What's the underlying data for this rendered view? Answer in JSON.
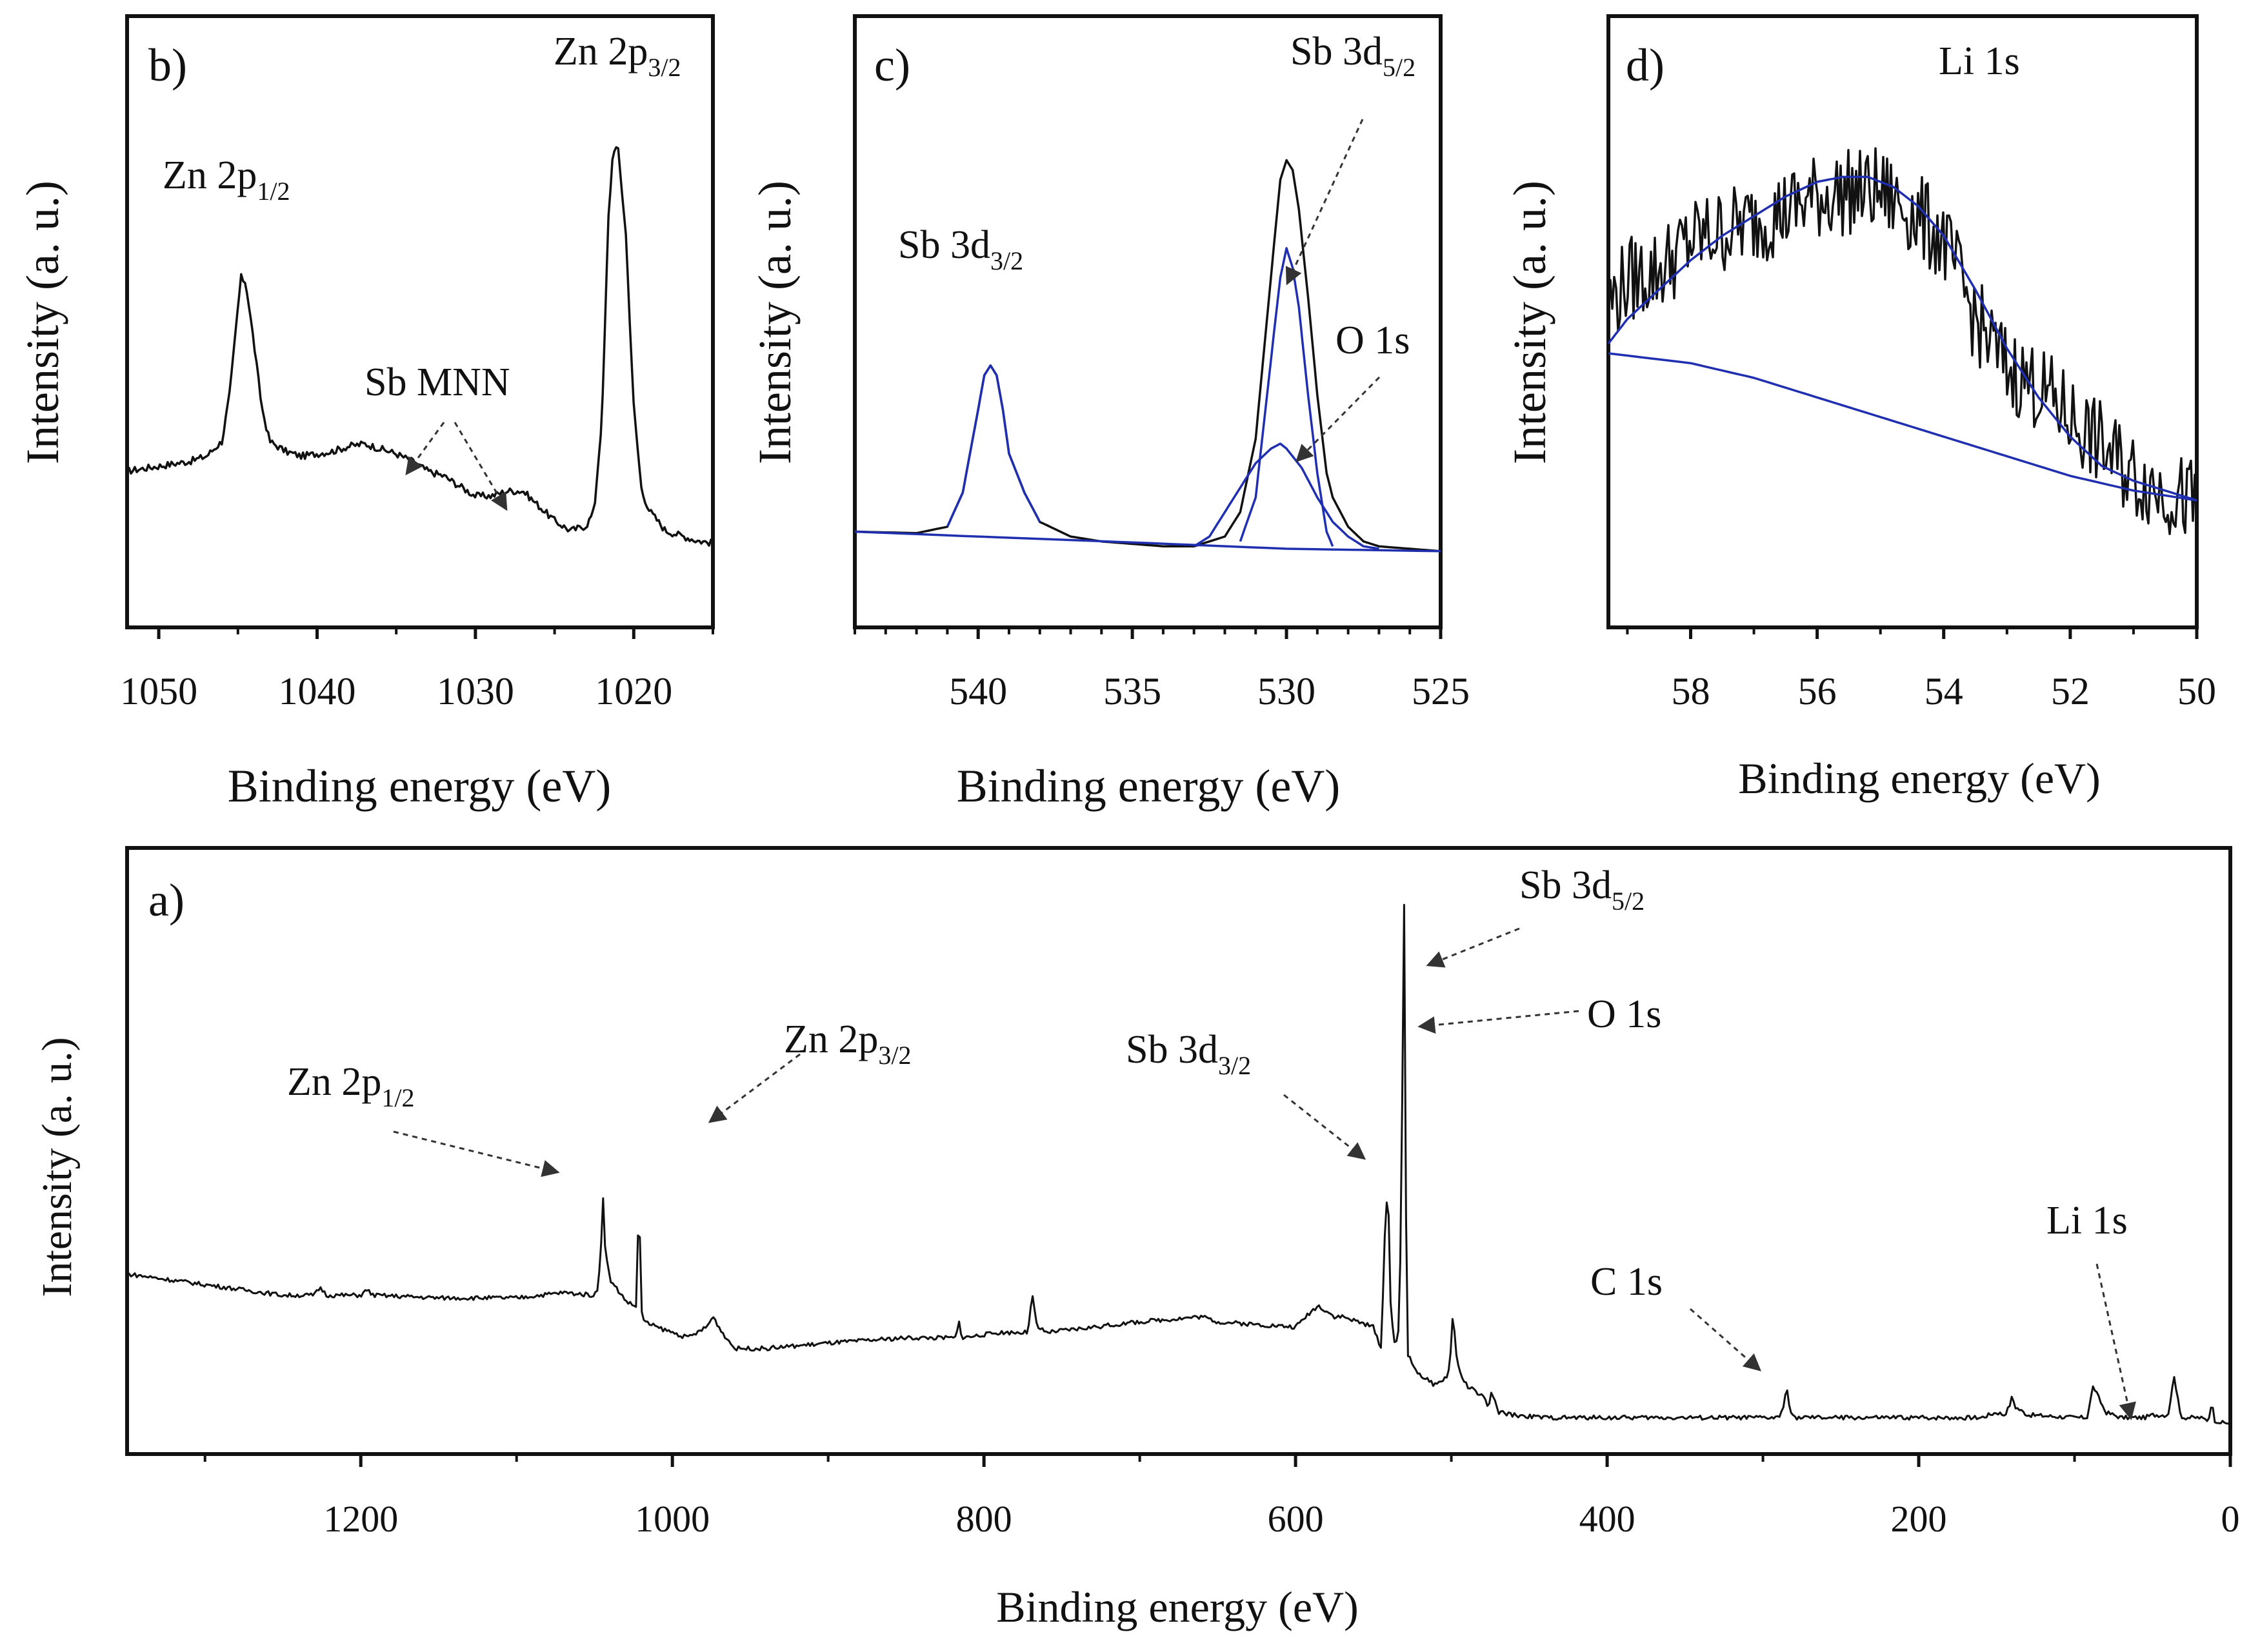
{
  "figure": {
    "colors": {
      "ink": "#111111",
      "fit": "#1f2fb0",
      "arrow": "#333333"
    }
  },
  "chart_data": [
    {
      "id": "b",
      "type": "line",
      "panel_label": "b)",
      "xlabel": "Binding energy (eV)",
      "ylabel": "Intensity (a. u.)",
      "xlim": [
        1052,
        1015
      ],
      "ylim": [
        0,
        100
      ],
      "x_ticks": [
        1050,
        1040,
        1030,
        1020
      ],
      "x_tick_labels": [
        "1050",
        "1040",
        "1030",
        "1020"
      ],
      "series": [
        {
          "name": "measured",
          "color": "#111111",
          "noise": 0.7,
          "x": [
            1052,
            1050,
            1048,
            1047,
            1046,
            1045.5,
            1045,
            1044.8,
            1044.5,
            1044,
            1043.5,
            1043,
            1042,
            1041,
            1040,
            1039,
            1038,
            1037,
            1036,
            1035,
            1034,
            1033,
            1032,
            1031,
            1030,
            1029,
            1028,
            1027,
            1026,
            1025,
            1024,
            1023,
            1022.5,
            1022,
            1021.6,
            1021.3,
            1021,
            1020.5,
            1020,
            1019.5,
            1019,
            1018,
            1017,
            1016,
            1015
          ],
          "values": [
            22,
            23,
            24,
            25,
            28,
            38,
            55,
            61,
            60,
            48,
            35,
            28,
            26,
            25,
            25.5,
            26,
            27,
            27.5,
            26.5,
            25.5,
            24,
            22,
            21,
            19,
            17,
            17,
            18,
            18,
            15,
            12,
            10,
            11,
            14,
            33,
            73,
            87,
            87,
            70,
            35,
            18,
            14,
            10,
            9,
            8,
            7.5
          ]
        }
      ],
      "annotations": [
        {
          "text": "Zn 2p",
          "sub": "1/2"
        },
        {
          "text": "Zn 2p",
          "sub": "3/2"
        },
        {
          "text": "Sb MNN",
          "sub": ""
        }
      ]
    },
    {
      "id": "c",
      "type": "line",
      "panel_label": "c)",
      "xlabel": "Binding energy (eV)",
      "ylabel": "Intensity (a. u.)",
      "xlim": [
        544,
        525
      ],
      "ylim": [
        0,
        100
      ],
      "x_ticks": [
        540,
        535,
        530,
        525
      ],
      "x_tick_labels": [
        "540",
        "535",
        "530",
        "525"
      ],
      "series": [
        {
          "name": "envelope",
          "color": "#111111",
          "x": [
            544,
            542,
            541,
            540.5,
            540,
            539.8,
            539.6,
            539.4,
            539.2,
            539,
            538.5,
            538,
            537,
            536,
            535,
            534,
            533,
            532,
            531.5,
            531,
            530.7,
            530.4,
            530.2,
            530,
            529.8,
            529.6,
            529.3,
            529,
            528.7,
            528.5,
            528,
            527.5,
            527,
            526,
            525
          ],
          "values": [
            6,
            5.7,
            7,
            14,
            31,
            38,
            40,
            38,
            31,
            22,
            14,
            8,
            5,
            4,
            3.5,
            3,
            3,
            5,
            10,
            25,
            45,
            65,
            78,
            82,
            80,
            72,
            54,
            34,
            18,
            13,
            7,
            4,
            3,
            2.5,
            2
          ]
        },
        {
          "name": "Sb 3d5/2 component",
          "color": "#1f2fb0",
          "x": [
            531.5,
            531,
            530.7,
            530.4,
            530.2,
            530,
            529.8,
            529.6,
            529.3,
            529,
            528.7,
            528.5
          ],
          "values": [
            4,
            13,
            30,
            47,
            58,
            64,
            60,
            52,
            34,
            18,
            6,
            3
          ]
        },
        {
          "name": "O 1s component",
          "color": "#1f2fb0",
          "x": [
            533,
            532.5,
            532,
            531.5,
            531,
            530.5,
            530.2,
            530,
            529.5,
            529,
            528.5,
            528,
            527.5,
            527
          ],
          "values": [
            3,
            5,
            10,
            15,
            20,
            23,
            24,
            23,
            19,
            13,
            8,
            5,
            3,
            2.5
          ]
        },
        {
          "name": "Sb 3d3/2 fit",
          "color": "#1f2fb0",
          "x": [
            541,
            540.5,
            540,
            539.8,
            539.6,
            539.4,
            539.2,
            539,
            538.5,
            538
          ],
          "values": [
            7,
            14,
            31,
            38,
            40,
            38,
            31,
            22,
            14,
            8
          ]
        },
        {
          "name": "background",
          "color": "#1f2fb0",
          "x": [
            544,
            540,
            535,
            530,
            525
          ],
          "values": [
            6,
            5,
            3.8,
            2.5,
            2
          ]
        }
      ],
      "annotations": [
        {
          "text": "Sb 3d",
          "sub": "3/2"
        },
        {
          "text": "Sb 3d",
          "sub": "5/2"
        },
        {
          "text": "O 1s",
          "sub": ""
        }
      ]
    },
    {
      "id": "d",
      "type": "line",
      "panel_label": "d)",
      "xlabel": "Binding energy (eV)",
      "ylabel": "Intensity (a. u.)",
      "xlim": [
        59.3,
        50
      ],
      "ylim": [
        0,
        100
      ],
      "x_ticks": [
        58,
        56,
        54,
        52,
        50
      ],
      "x_tick_labels": [
        "58",
        "56",
        "54",
        "52",
        "50"
      ],
      "series": [
        {
          "name": "measured",
          "color": "#111111",
          "noise": 9,
          "x": [
            59.3,
            59,
            58.5,
            58,
            57.5,
            57,
            56.5,
            56,
            55.5,
            55,
            54.5,
            54,
            53.5,
            53,
            52.5,
            52,
            51.5,
            51,
            50.5,
            50
          ],
          "values": [
            55,
            60,
            62,
            68,
            70,
            72,
            74,
            77,
            78,
            78,
            74,
            68,
            52,
            42,
            38,
            32,
            26,
            20,
            17,
            14
          ]
        },
        {
          "name": "fit",
          "color": "#1f2fb0",
          "x": [
            59.3,
            59,
            58.5,
            58,
            57.5,
            57,
            56.5,
            56,
            55.6,
            55.2,
            54.8,
            54.4,
            54,
            53.5,
            53,
            52.5,
            52,
            51.5,
            51,
            50.5,
            50
          ],
          "values": [
            47,
            52,
            58,
            64,
            69,
            73,
            77,
            80,
            81,
            81,
            79,
            75,
            69,
            58,
            46,
            36,
            28,
            22,
            19,
            17,
            15
          ]
        },
        {
          "name": "background",
          "color": "#1f2fb0",
          "x": [
            59.3,
            58,
            57,
            56,
            55,
            54,
            53,
            52,
            51,
            50
          ],
          "values": [
            45,
            43,
            40,
            36,
            32,
            28,
            24,
            20,
            17,
            15
          ]
        }
      ],
      "annotations": [
        {
          "text": "Li 1s",
          "sub": ""
        }
      ]
    },
    {
      "id": "a",
      "type": "line",
      "panel_label": "a)",
      "xlabel": "Binding energy (eV)",
      "ylabel": "Intensity (a. u.)",
      "xlim": [
        1350,
        0
      ],
      "ylim": [
        0,
        100
      ],
      "x_ticks": [
        1200,
        1000,
        800,
        600,
        400,
        200,
        0
      ],
      "x_tick_labels": [
        "1200",
        "1000",
        "800",
        "600",
        "400",
        "200",
        "0"
      ],
      "x_minor_ticks": [
        1300,
        1100,
        900,
        700,
        500,
        300,
        100
      ],
      "series": [
        {
          "name": "survey",
          "color": "#111111",
          "noise": 0.4,
          "x": [
            1350,
            1300,
            1250,
            1230,
            1226,
            1222,
            1200,
            1196,
            1192,
            1150,
            1100,
            1070,
            1050,
            1048,
            1046,
            1044.6,
            1043,
            1040,
            1038,
            1035,
            1030,
            1025,
            1023,
            1022,
            1021.5,
            1021,
            1020,
            1018,
            1010,
            1000,
            990,
            978,
            974,
            968,
            960,
            940,
            900,
            850,
            818,
            816,
            814,
            790,
            772,
            769,
            766,
            760,
            700,
            660,
            650,
            600,
            590,
            585,
            580,
            575,
            570,
            560,
            550,
            545,
            542,
            540,
            539.5,
            538,
            536,
            534,
            532,
            531,
            530.2,
            529.5,
            528,
            525,
            520,
            510,
            502,
            500,
            499,
            497,
            494,
            490,
            480,
            476,
            474,
            472,
            470,
            460,
            440,
            400,
            350,
            300,
            290,
            286,
            285,
            284,
            280,
            250,
            200,
            160,
            150,
            145,
            142,
            140,
            138,
            130,
            100,
            92,
            90,
            88,
            85,
            80,
            70,
            65,
            60,
            55,
            50,
            45,
            40,
            38,
            36,
            34,
            32,
            30,
            20,
            14,
            12,
            10,
            5,
            0
          ],
          "values": [
            29,
            27,
            25,
            25,
            26.5,
            25,
            25,
            26,
            25,
            24.5,
            24.5,
            25.5,
            25,
            26,
            33,
            44,
            33,
            28,
            27,
            26,
            24,
            23,
            23,
            38,
            70,
            38,
            22,
            20,
            19,
            18,
            17,
            19,
            21,
            18,
            15,
            15,
            16,
            17,
            17,
            20,
            17,
            18,
            18,
            25,
            19,
            18,
            20,
            21,
            20,
            19,
            22,
            23,
            22,
            21,
            21,
            20,
            19,
            15,
            43,
            40,
            26,
            20,
            15,
            18,
            40,
            88,
            100,
            50,
            14,
            12,
            10,
            8,
            10,
            16,
            22,
            14,
            10,
            8,
            6,
            4,
            7,
            5,
            3,
            2.5,
            2,
            2,
            2,
            2,
            2,
            4.5,
            10,
            4.5,
            2,
            2,
            2,
            2,
            3,
            2.5,
            4,
            6,
            4,
            2.5,
            2,
            2,
            5,
            8,
            6,
            3,
            2,
            2,
            2,
            2,
            2.5,
            2.5,
            2.5,
            6,
            10,
            6,
            2.5,
            2,
            2,
            1.5,
            5,
            1.5,
            1,
            1
          ]
        }
      ],
      "annotations": [
        {
          "text": "Zn 2p",
          "sub": "1/2"
        },
        {
          "text": "Zn 2p",
          "sub": "3/2"
        },
        {
          "text": "Sb 3d",
          "sub": "3/2"
        },
        {
          "text": "Sb 3d",
          "sub": "5/2"
        },
        {
          "text": "O 1s",
          "sub": ""
        },
        {
          "text": "C 1s",
          "sub": ""
        },
        {
          "text": "Li 1s",
          "sub": ""
        }
      ]
    }
  ]
}
